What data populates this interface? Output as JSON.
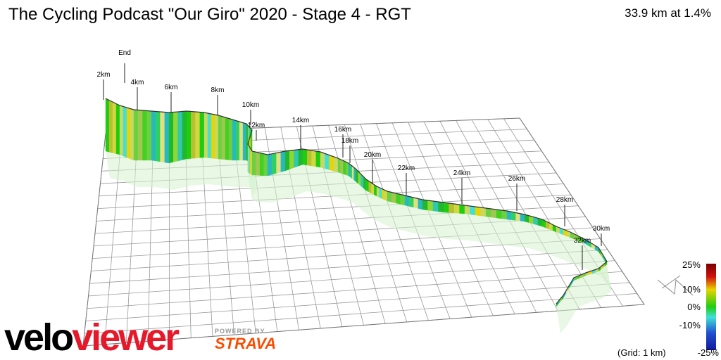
{
  "header": {
    "title": "The Cycling Podcast \"Our Giro\" 2020 - Stage 4 - RGT",
    "summary": "33.9 km at 1.4%"
  },
  "profile": {
    "km_labels": [
      "End",
      "2km",
      "4km",
      "6km",
      "8km",
      "10km",
      "12km",
      "14km",
      "16km",
      "18km",
      "20km",
      "22km",
      "24km",
      "26km",
      "28km",
      "30km",
      "32km"
    ]
  },
  "legend": {
    "labels": [
      "25%",
      "10%",
      "0%",
      "-10%",
      "-25%"
    ],
    "grid_note": "(Grid: 1 km)",
    "colors": {
      "steep_up": "#7a0000",
      "up": "#e8d400",
      "flat": "#20cc10",
      "down": "#40e0d8",
      "steep_down": "#101a9a"
    }
  },
  "branding": {
    "logo_part1": "velo",
    "logo_part2": "viewer",
    "powered_by": "POWERED BY",
    "strava": "STRAVA",
    "logo_color": "#e6192b",
    "strava_color": "#fc4c02"
  }
}
